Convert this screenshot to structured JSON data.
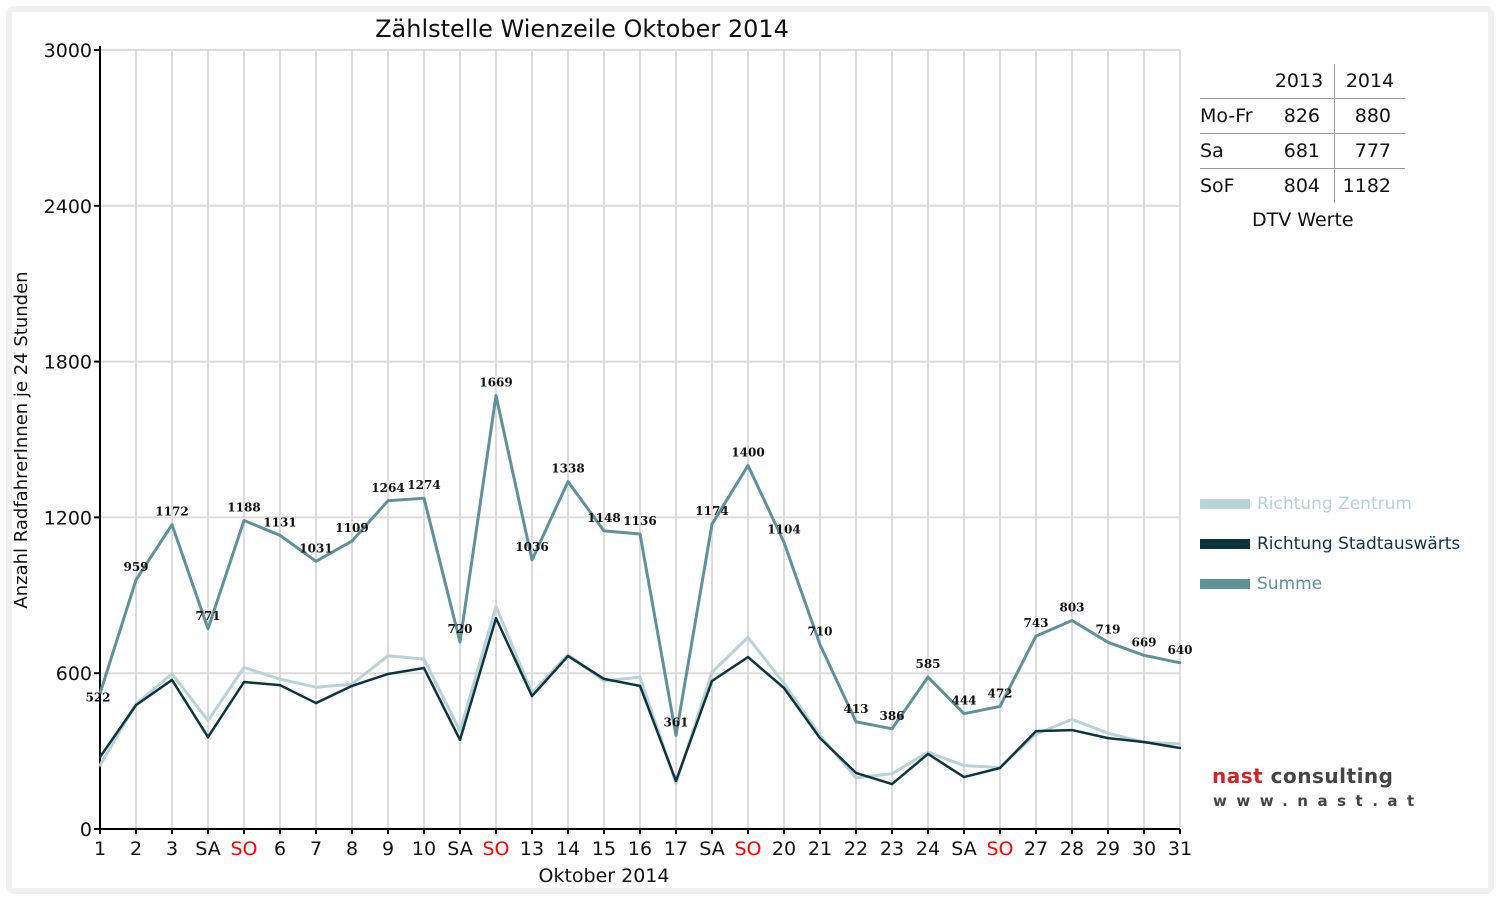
{
  "chart_data": {
    "type": "line",
    "title": "Zählstelle Wienzeile Oktober 2014",
    "xlabel": "Oktober 2014",
    "ylabel": "Anzahl RadfahrerInnen je 24 Stunden",
    "ylim": [
      0,
      3000
    ],
    "yticks": [
      "0",
      "600",
      "1200",
      "1800",
      "2400",
      "3000"
    ],
    "yticks_values": [
      0,
      600,
      1200,
      1800,
      2400,
      3000
    ],
    "categories": [
      "1",
      "2",
      "3",
      "SA",
      "SO",
      "6",
      "7",
      "8",
      "9",
      "10",
      "SA",
      "SO",
      "13",
      "14",
      "15",
      "16",
      "17",
      "SA",
      "SO",
      "20",
      "21",
      "22",
      "23",
      "24",
      "SA",
      "SO",
      "27",
      "28",
      "29",
      "30",
      "31"
    ],
    "category_colors": {
      "SO": "#ff0000",
      "default": "#111111"
    },
    "grid": true,
    "legend_placement": "right",
    "series": [
      {
        "name": "Richtung Zentrum",
        "color": "#b8d2d5",
        "values": [
          245,
          482,
          598,
          417,
          622,
          577,
          546,
          558,
          667,
          654,
          377,
          857,
          524,
          672,
          570,
          585,
          176,
          604,
          738,
          561,
          360,
          197,
          213,
          296,
          244,
          237,
          366,
          422,
          369,
          334,
          328
        ]
      },
      {
        "name": "Richtung Stadtauswärts",
        "color": "#0c363c",
        "values": [
          277,
          477,
          574,
          354,
          566,
          554,
          485,
          551,
          597,
          620,
          343,
          812,
          512,
          666,
          578,
          551,
          185,
          570,
          662,
          543,
          350,
          216,
          173,
          289,
          200,
          235,
          377,
          381,
          350,
          335,
          312
        ]
      },
      {
        "name": "Summe",
        "color": "#5f9298",
        "values": [
          522,
          959,
          1172,
          771,
          1188,
          1131,
          1031,
          1109,
          1264,
          1274,
          720,
          1669,
          1036,
          1338,
          1148,
          1136,
          361,
          1174,
          1400,
          1104,
          710,
          413,
          386,
          585,
          444,
          472,
          743,
          803,
          719,
          669,
          640
        ],
        "data_labels": true
      }
    ]
  },
  "dtv_table": {
    "caption": "DTV Werte",
    "columns": [
      "2013",
      "2014"
    ],
    "rows": [
      {
        "label": "Mo-Fr",
        "v2013": "826",
        "v2014": "880"
      },
      {
        "label": "Sa",
        "v2013": "681",
        "v2014": "777"
      },
      {
        "label": "SoF",
        "v2013": "804",
        "v2014": "1182"
      }
    ]
  },
  "logo": {
    "brand_red": "nast",
    "brand_gray": "consulting",
    "url": "www.nast.at"
  }
}
